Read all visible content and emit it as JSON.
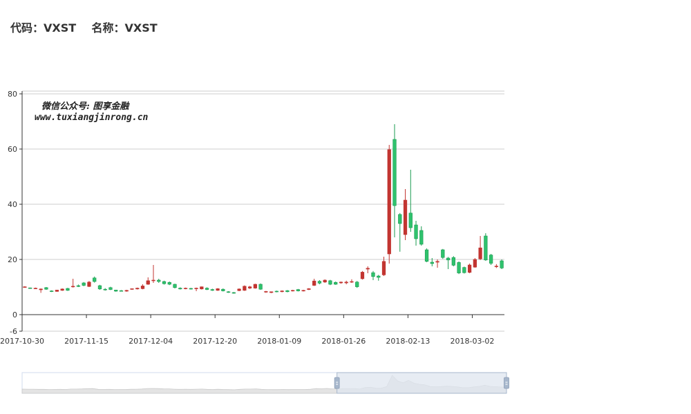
{
  "header": {
    "code_label": "代码：",
    "code": "VXST",
    "name_label": "名称：",
    "name": "VXST"
  },
  "watermark": {
    "line1": "微信公众号: 图享金融",
    "line2": "www.tuxiangjinrong.cn"
  },
  "colors": {
    "up": "#c23531",
    "down": "#2fc26d",
    "down_border": "#1a9b50",
    "axis": "#333333",
    "grid": "#cccccc",
    "zoom_fill": "#dfe5ef",
    "zoom_handle": "#a7b7cc"
  },
  "chart_data": {
    "type": "candlestick",
    "title": "",
    "xlabel": "",
    "ylabel": "",
    "ylim": [
      -6,
      80
    ],
    "yticks": [
      -6,
      0,
      20,
      40,
      60,
      80
    ],
    "grid": true,
    "xtick_labels": [
      "2017-10-30",
      "2017-11-15",
      "2017-12-04",
      "2017-12-20",
      "2018-01-09",
      "2018-01-26",
      "2018-02-13",
      "2018-03-02"
    ],
    "xtick_indices": [
      0,
      12,
      24,
      36,
      48,
      60,
      72,
      84
    ],
    "ohlc": [
      [
        10.0,
        10.1,
        9.8,
        10.3
      ],
      [
        9.7,
        9.6,
        9.4,
        9.8
      ],
      [
        9.5,
        9.6,
        9.3,
        9.8
      ],
      [
        9.0,
        9.3,
        7.9,
        9.5
      ],
      [
        9.8,
        9.2,
        9.0,
        10.0
      ],
      [
        8.6,
        8.4,
        8.2,
        8.8
      ],
      [
        8.4,
        8.9,
        8.3,
        9.0
      ],
      [
        8.8,
        9.3,
        8.6,
        9.5
      ],
      [
        9.5,
        8.8,
        8.6,
        9.7
      ],
      [
        10.2,
        10.3,
        9.8,
        13.0
      ],
      [
        10.5,
        10.2,
        10.0,
        10.9
      ],
      [
        11.5,
        10.6,
        10.3,
        11.8
      ],
      [
        10.2,
        11.8,
        10.0,
        12.2
      ],
      [
        13.3,
        12.0,
        11.6,
        13.8
      ],
      [
        10.5,
        9.3,
        9.0,
        10.8
      ],
      [
        9.2,
        9.0,
        8.7,
        9.6
      ],
      [
        9.8,
        9.1,
        8.9,
        10.1
      ],
      [
        8.9,
        8.5,
        8.3,
        9.0
      ],
      [
        8.7,
        8.6,
        8.4,
        8.9
      ],
      [
        8.5,
        8.8,
        8.3,
        9.0
      ],
      [
        9.2,
        9.4,
        9.0,
        9.5
      ],
      [
        9.3,
        9.6,
        9.1,
        9.8
      ],
      [
        9.4,
        10.4,
        9.2,
        11.0
      ],
      [
        11.0,
        12.3,
        10.8,
        13.5
      ],
      [
        12.3,
        12.5,
        11.5,
        18.0
      ],
      [
        12.5,
        12.0,
        11.5,
        13.0
      ],
      [
        12.0,
        11.2,
        10.9,
        12.3
      ],
      [
        11.7,
        11.0,
        10.7,
        12.0
      ],
      [
        11.0,
        9.8,
        9.5,
        11.2
      ],
      [
        9.6,
        9.3,
        9.1,
        9.9
      ],
      [
        9.4,
        9.6,
        9.2,
        9.8
      ],
      [
        9.5,
        9.3,
        9.1,
        9.7
      ],
      [
        9.4,
        9.6,
        8.5,
        9.8
      ],
      [
        9.3,
        10.1,
        9.1,
        10.2
      ],
      [
        9.6,
        9.1,
        8.9,
        9.9
      ],
      [
        9.1,
        8.8,
        8.6,
        9.4
      ],
      [
        8.8,
        9.4,
        8.6,
        9.6
      ],
      [
        9.2,
        8.6,
        8.4,
        9.5
      ],
      [
        8.3,
        8.1,
        7.9,
        8.5
      ],
      [
        8.0,
        7.8,
        7.6,
        8.2
      ],
      [
        8.7,
        9.3,
        8.5,
        9.5
      ],
      [
        8.8,
        10.3,
        8.6,
        10.6
      ],
      [
        9.6,
        10.1,
        9.3,
        10.4
      ],
      [
        9.6,
        11.0,
        9.4,
        11.2
      ],
      [
        11.0,
        9.2,
        9.0,
        11.3
      ],
      [
        8.2,
        8.4,
        7.9,
        8.6
      ],
      [
        8.0,
        8.3,
        7.8,
        8.4
      ],
      [
        8.5,
        8.3,
        8.1,
        8.7
      ],
      [
        8.3,
        8.6,
        8.1,
        8.8
      ],
      [
        8.7,
        8.3,
        8.1,
        8.9
      ],
      [
        8.6,
        8.8,
        8.4,
        9.0
      ],
      [
        9.1,
        8.6,
        8.4,
        9.3
      ],
      [
        8.6,
        8.8,
        8.4,
        9.0
      ],
      [
        9.1,
        9.4,
        8.9,
        9.6
      ],
      [
        10.6,
        12.2,
        10.4,
        13.0
      ],
      [
        12.1,
        11.4,
        11.0,
        12.5
      ],
      [
        11.8,
        12.5,
        11.5,
        12.8
      ],
      [
        12.3,
        11.0,
        10.7,
        12.6
      ],
      [
        11.7,
        11.0,
        10.8,
        12.0
      ],
      [
        11.5,
        11.8,
        11.2,
        12.0
      ],
      [
        11.5,
        11.8,
        11.0,
        12.3
      ],
      [
        12.0,
        12.0,
        11.5,
        12.8
      ],
      [
        11.8,
        10.1,
        9.7,
        12.2
      ],
      [
        13.0,
        15.4,
        12.7,
        15.8
      ],
      [
        16.5,
        16.8,
        15.0,
        17.5
      ],
      [
        15.2,
        13.8,
        12.5,
        15.8
      ],
      [
        14.0,
        13.5,
        12.3,
        14.4
      ],
      [
        14.4,
        19.3,
        14.0,
        21.0
      ],
      [
        22.0,
        59.8,
        18.5,
        61.5
      ],
      [
        63.5,
        39.5,
        28.0,
        69.0
      ],
      [
        36.3,
        33.0,
        22.8,
        36.8
      ],
      [
        29.0,
        41.5,
        27.0,
        45.5
      ],
      [
        36.8,
        31.5,
        30.0,
        52.5
      ],
      [
        32.5,
        27.5,
        25.0,
        34.0
      ],
      [
        30.5,
        25.5,
        25.0,
        32.0
      ],
      [
        23.5,
        19.3,
        19.0,
        24.0
      ],
      [
        19.0,
        18.5,
        17.5,
        20.5
      ],
      [
        19.0,
        19.3,
        17.0,
        20.0
      ],
      [
        23.5,
        20.7,
        20.2,
        23.8
      ],
      [
        20.5,
        19.8,
        16.5,
        20.9
      ],
      [
        20.7,
        17.9,
        17.5,
        21.2
      ],
      [
        18.9,
        15.1,
        14.7,
        19.3
      ],
      [
        17.1,
        15.2,
        14.9,
        17.4
      ],
      [
        15.3,
        18.0,
        15.0,
        18.5
      ],
      [
        17.2,
        20.0,
        17.0,
        20.5
      ],
      [
        20.2,
        24.2,
        19.8,
        28.5
      ],
      [
        28.5,
        19.8,
        19.5,
        29.5
      ],
      [
        21.6,
        18.6,
        18.0,
        22.0
      ],
      [
        17.6,
        17.6,
        16.9,
        18.3
      ],
      [
        19.5,
        16.9,
        16.5,
        20.0
      ]
    ],
    "dataZoom": {
      "start": 0.65,
      "end": 1.0
    }
  }
}
